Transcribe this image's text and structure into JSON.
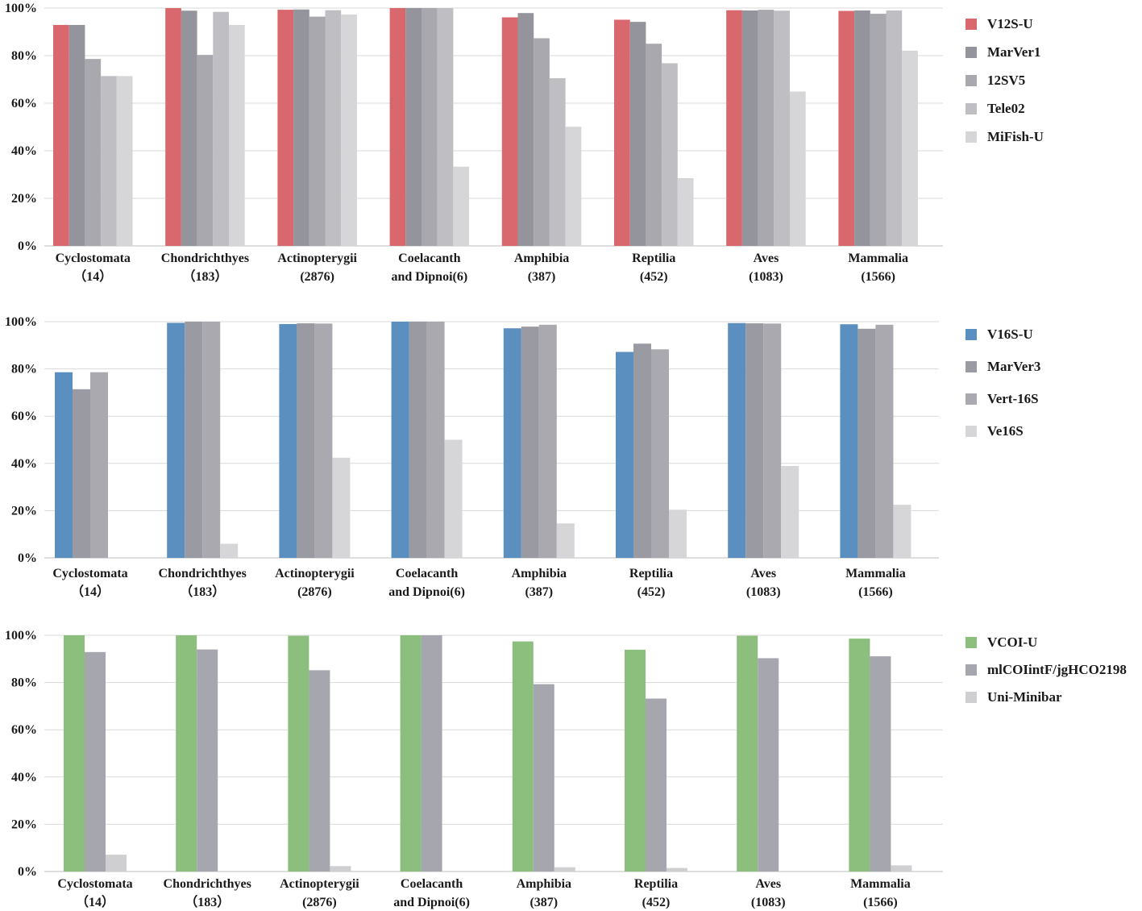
{
  "chart_data": [
    {
      "type": "bar",
      "categories": [
        [
          "Cyclostomata",
          "（14）"
        ],
        [
          "Chondrichthyes",
          "（183）"
        ],
        [
          "Actinopterygii",
          "(2876)"
        ],
        [
          "Coelacanth",
          "and Dipnoi(6)"
        ],
        [
          "Amphibia",
          "(387)"
        ],
        [
          "Reptilia",
          "(452)"
        ],
        [
          "Aves",
          "(1083)"
        ],
        [
          "Mammalia",
          "(1566)"
        ]
      ],
      "yticks": [
        "0%",
        "20%",
        "40%",
        "60%",
        "80%",
        "100%"
      ],
      "ylim": [
        0,
        100
      ],
      "series": [
        {
          "name": "V12S-U",
          "color": "#d9686e",
          "values": [
            92.9,
            100,
            99.3,
            100,
            96.1,
            95.1,
            99.1,
            98.8
          ]
        },
        {
          "name": "MarVer1",
          "color": "#94949c",
          "values": [
            92.9,
            98.9,
            99.4,
            100,
            97.9,
            94.2,
            99.0,
            99.0
          ]
        },
        {
          "name": "12SV5",
          "color": "#a8a8ae",
          "values": [
            78.6,
            80.3,
            96.4,
            100,
            87.3,
            85.0,
            99.3,
            97.6
          ]
        },
        {
          "name": "Tele02",
          "color": "#bfbfc3",
          "values": [
            71.4,
            98.4,
            99.1,
            100,
            70.5,
            76.8,
            98.9,
            99.0
          ]
        },
        {
          "name": "MiFish-U",
          "color": "#d6d6d8",
          "values": [
            71.4,
            92.9,
            97.3,
            33.3,
            50.1,
            28.5,
            64.9,
            82.1
          ]
        }
      ]
    },
    {
      "type": "bar",
      "categories": [
        [
          "Cyclostomata",
          "（14）"
        ],
        [
          "Chondrichthyes",
          "（183）"
        ],
        [
          "Actinopterygii",
          "(2876)"
        ],
        [
          "Coelacanth",
          "and Dipnoi(6)"
        ],
        [
          "Amphibia",
          "(387)"
        ],
        [
          "Reptilia",
          "(452)"
        ],
        [
          "Aves",
          "(1083)"
        ],
        [
          "Mammalia",
          "(1566)"
        ]
      ],
      "yticks": [
        "0%",
        "20%",
        "40%",
        "60%",
        "80%",
        "100%"
      ],
      "ylim": [
        0,
        100
      ],
      "series": [
        {
          "name": "V16S-U",
          "color": "#5b8fbf",
          "values": [
            78.6,
            99.5,
            99.0,
            100,
            97.2,
            87.2,
            99.4,
            98.9
          ]
        },
        {
          "name": "MarVer3",
          "color": "#9a9aa2",
          "values": [
            71.4,
            100,
            99.3,
            100,
            97.9,
            90.7,
            99.3,
            97.0
          ]
        },
        {
          "name": "Vert-16S",
          "color": "#a9a9af",
          "values": [
            78.6,
            100,
            99.2,
            100,
            98.7,
            88.3,
            99.2,
            98.7
          ]
        },
        {
          "name": "Ve16S",
          "color": "#d6d6d8",
          "values": [
            0,
            6.0,
            42.4,
            50.0,
            14.6,
            20.4,
            38.9,
            22.5
          ]
        }
      ]
    },
    {
      "type": "bar",
      "categories": [
        [
          "Cyclostomata",
          "（14）"
        ],
        [
          "Chondrichthyes",
          "（183）"
        ],
        [
          "Actinopterygii",
          "(2876)"
        ],
        [
          "Coelacanth",
          "and Dipnoi(6)"
        ],
        [
          "Amphibia",
          "(387)"
        ],
        [
          "Reptilia",
          "(452)"
        ],
        [
          "Aves",
          "(1083)"
        ],
        [
          "Mammalia",
          "(1566)"
        ]
      ],
      "yticks": [
        "0%",
        "20%",
        "40%",
        "60%",
        "80%",
        "100%"
      ],
      "ylim": [
        0,
        100
      ],
      "series": [
        {
          "name": "VCOI-U",
          "color": "#8cbf7e",
          "values": [
            100,
            100,
            99.8,
            100,
            97.4,
            93.9,
            99.8,
            98.6
          ]
        },
        {
          "name": "mlCOIintF/jgHCO2198",
          "color": "#a6a6ae",
          "values": [
            92.9,
            94.0,
            85.2,
            100,
            79.3,
            73.2,
            90.3,
            91.1
          ]
        },
        {
          "name": "Uni-Minibar",
          "color": "#cfcfd2",
          "values": [
            7.1,
            0,
            2.3,
            0,
            1.8,
            1.5,
            0,
            2.6
          ]
        }
      ]
    }
  ]
}
